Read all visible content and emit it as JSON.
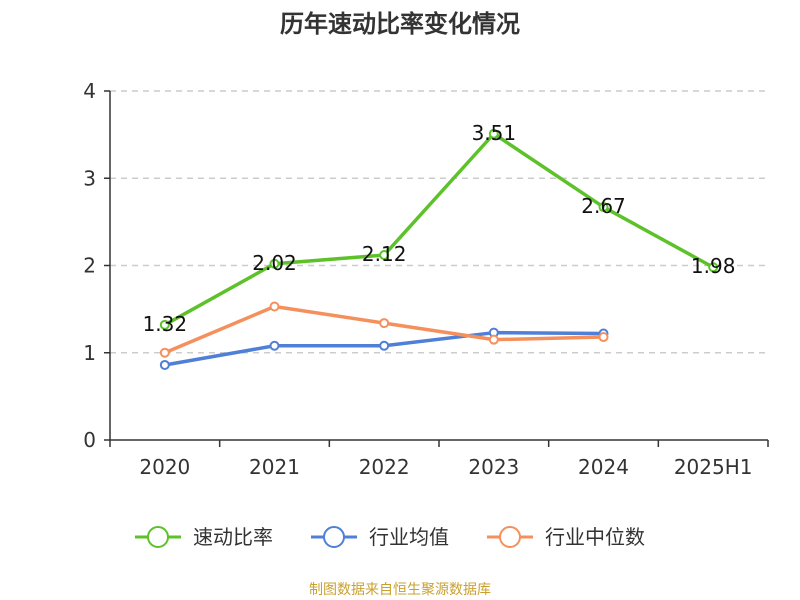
{
  "chart_data": {
    "type": "line",
    "title": "历年速动比率变化情况",
    "categories": [
      "2020",
      "2021",
      "2022",
      "2023",
      "2024",
      "2025H1"
    ],
    "ylim": [
      0,
      4
    ],
    "yticks": [
      0,
      1,
      2,
      3,
      4
    ],
    "grid": true,
    "legend_position": "bottom",
    "series": [
      {
        "name": "速动比率",
        "color": "#5dc22a",
        "values": [
          1.32,
          2.02,
          2.12,
          3.51,
          2.67,
          1.98
        ],
        "labels": [
          "1.32",
          "2.02",
          "2.12",
          "3.51",
          "2.67",
          "1.98"
        ]
      },
      {
        "name": "行业均值",
        "color": "#4f7fd6",
        "values": [
          0.86,
          1.08,
          1.08,
          1.23,
          1.22,
          null
        ]
      },
      {
        "name": "行业中位数",
        "color": "#f5905d",
        "values": [
          1.0,
          1.53,
          1.34,
          1.15,
          1.18,
          null
        ]
      }
    ]
  },
  "source": "制图数据来自恒生聚源数据库"
}
